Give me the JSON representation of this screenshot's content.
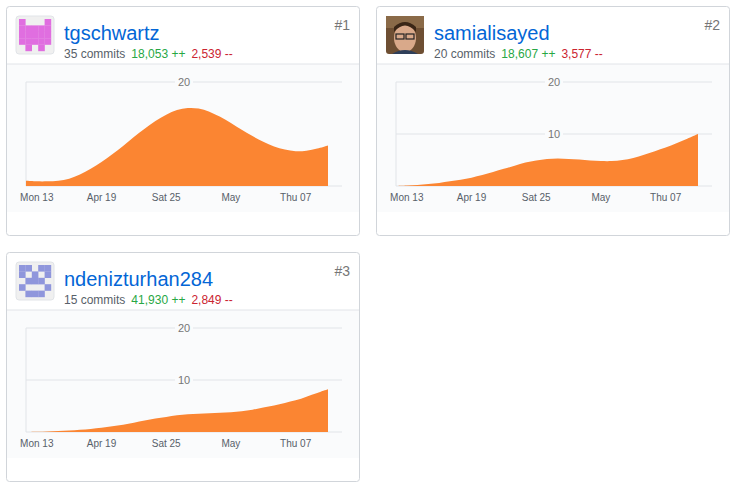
{
  "chart_data": [
    {
      "type": "area",
      "title": "tgschwartz",
      "annotations": [
        "#1",
        "35 commits",
        "18,053 ++",
        "2,539 --"
      ],
      "categories": [
        null,
        "Mon 13",
        null,
        null,
        null,
        null,
        null,
        "Apr 19",
        null,
        null,
        null,
        null,
        null,
        "Sat 25",
        null,
        null,
        null,
        null,
        null,
        "May",
        null,
        null,
        null,
        null,
        null,
        "Thu 07",
        null,
        null,
        null
      ],
      "values": [
        1.0,
        0.9,
        0.9,
        1.0,
        1.4,
        2.2,
        3.3,
        4.6,
        6.1,
        7.7,
        9.4,
        11.0,
        12.5,
        13.7,
        14.6,
        15.0,
        14.9,
        14.3,
        13.3,
        12.1,
        10.8,
        9.6,
        8.5,
        7.6,
        7.0,
        6.7,
        6.8,
        7.2,
        7.8
      ],
      "color": "#fb8532",
      "ylim": [
        0,
        20
      ],
      "yticks": [
        20
      ],
      "grid": true
    },
    {
      "type": "area",
      "title": "samialisayed",
      "annotations": [
        "#2",
        "20 commits",
        "18,607 ++",
        "3,577 --"
      ],
      "categories": [
        null,
        "Mon 13",
        null,
        null,
        null,
        null,
        null,
        "Apr 19",
        null,
        null,
        null,
        null,
        null,
        "Sat 25",
        null,
        null,
        null,
        null,
        null,
        "May",
        null,
        null,
        null,
        null,
        null,
        "Thu 07",
        null,
        null,
        null
      ],
      "values": [
        0.0,
        0.1,
        0.2,
        0.4,
        0.6,
        0.9,
        1.2,
        1.6,
        2.1,
        2.7,
        3.3,
        3.9,
        4.5,
        4.9,
        5.2,
        5.3,
        5.2,
        5.1,
        4.9,
        4.8,
        4.8,
        5.0,
        5.4,
        6.0,
        6.7,
        7.4,
        8.2,
        9.1,
        10.0
      ],
      "color": "#fb8532",
      "ylim": [
        0,
        20
      ],
      "yticks": [
        10,
        20
      ],
      "grid": true
    },
    {
      "type": "area",
      "title": "ndenizturhan284",
      "annotations": [
        "#3",
        "15 commits",
        "41,930 ++",
        "2,849 --"
      ],
      "categories": [
        null,
        "Mon 13",
        null,
        null,
        null,
        null,
        null,
        "Apr 19",
        null,
        null,
        null,
        null,
        null,
        "Sat 25",
        null,
        null,
        null,
        null,
        null,
        "May",
        null,
        null,
        null,
        null,
        null,
        "Thu 07",
        null,
        null,
        null
      ],
      "values": [
        0.0,
        0.05,
        0.1,
        0.2,
        0.3,
        0.45,
        0.6,
        0.8,
        1.1,
        1.4,
        1.8,
        2.2,
        2.6,
        2.9,
        3.2,
        3.4,
        3.5,
        3.6,
        3.7,
        3.8,
        4.0,
        4.3,
        4.7,
        5.1,
        5.6,
        6.1,
        6.8,
        7.5,
        8.2
      ],
      "color": "#fb8532",
      "ylim": [
        0,
        20
      ],
      "yticks": [
        10,
        20
      ],
      "grid": true
    }
  ]
}
